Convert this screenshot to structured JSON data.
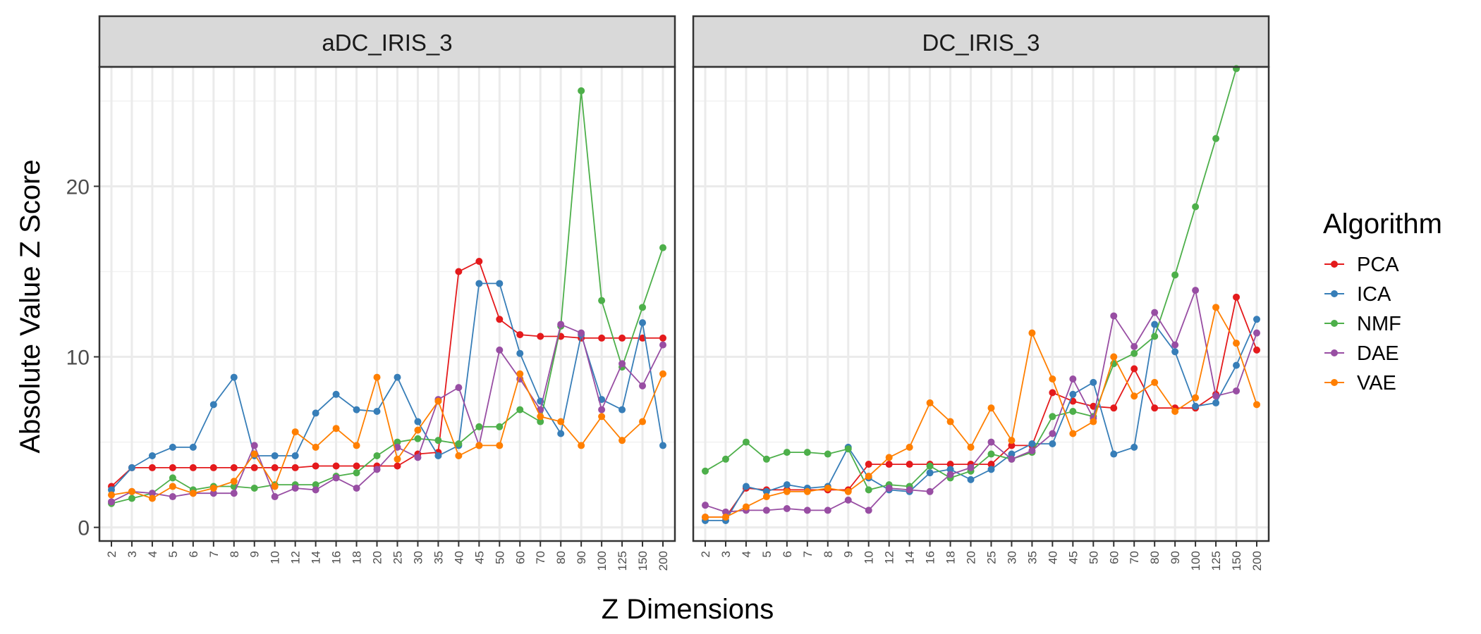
{
  "chart_data": {
    "type": "line",
    "xlabel": "Z Dimensions",
    "ylabel": "Absolute Value Z Score",
    "ylim": [
      -0.8,
      27
    ],
    "yticks": [
      0,
      10,
      20
    ],
    "grid": true,
    "legend": {
      "title": "Algorithm",
      "placement": "right"
    },
    "categories": [
      "2",
      "3",
      "4",
      "5",
      "6",
      "7",
      "8",
      "9",
      "10",
      "12",
      "14",
      "16",
      "18",
      "20",
      "25",
      "30",
      "35",
      "40",
      "45",
      "50",
      "60",
      "70",
      "80",
      "90",
      "100",
      "125",
      "150",
      "200"
    ],
    "colors": {
      "PCA": "#e41a1c",
      "ICA": "#377eb8",
      "NMF": "#4daf4a",
      "DAE": "#984ea3",
      "VAE": "#ff7f00"
    },
    "series_names": [
      "PCA",
      "ICA",
      "NMF",
      "DAE",
      "VAE"
    ],
    "panels": [
      {
        "title": "aDC_IRIS_3",
        "series": [
          {
            "name": "PCA",
            "values": [
              2.4,
              3.5,
              3.5,
              3.5,
              3.5,
              3.5,
              3.5,
              3.5,
              3.5,
              3.5,
              3.6,
              3.6,
              3.6,
              3.6,
              3.6,
              4.3,
              4.4,
              15.0,
              15.6,
              12.2,
              11.3,
              11.2,
              11.2,
              11.1,
              11.1,
              11.1,
              11.1,
              11.1
            ]
          },
          {
            "name": "ICA",
            "values": [
              2.2,
              3.5,
              4.2,
              4.7,
              4.7,
              7.2,
              8.8,
              4.2,
              4.2,
              4.2,
              6.7,
              7.8,
              6.9,
              6.8,
              8.8,
              6.2,
              4.2,
              4.8,
              14.3,
              14.3,
              10.2,
              7.4,
              5.5,
              11.3,
              7.5,
              6.9,
              12.0,
              4.8
            ]
          },
          {
            "name": "NMF",
            "values": [
              1.4,
              1.7,
              2.0,
              2.9,
              2.2,
              2.4,
              2.4,
              2.3,
              2.5,
              2.5,
              2.5,
              3.0,
              3.2,
              4.2,
              5.0,
              5.2,
              5.1,
              4.9,
              5.9,
              5.9,
              6.9,
              6.2,
              11.8,
              25.6,
              13.3,
              9.4,
              12.9,
              16.4
            ]
          },
          {
            "name": "DAE",
            "values": [
              1.5,
              2.1,
              2.0,
              1.8,
              2.0,
              2.0,
              2.0,
              4.8,
              1.8,
              2.3,
              2.2,
              2.9,
              2.3,
              3.4,
              4.7,
              4.1,
              7.5,
              8.2,
              4.8,
              10.4,
              8.7,
              6.9,
              11.9,
              11.4,
              6.9,
              9.6,
              8.3,
              10.7
            ]
          },
          {
            "name": "VAE",
            "values": [
              1.9,
              2.1,
              1.7,
              2.4,
              2.0,
              2.3,
              2.7,
              4.3,
              2.4,
              5.6,
              4.7,
              5.8,
              4.8,
              8.8,
              4.0,
              5.7,
              7.4,
              4.2,
              4.8,
              4.8,
              9.0,
              6.5,
              6.2,
              4.8,
              6.5,
              5.1,
              6.2,
              9.0
            ]
          }
        ]
      },
      {
        "title": "DC_IRIS_3",
        "series": [
          {
            "name": "PCA",
            "values": [
              0.6,
              0.6,
              2.3,
              2.2,
              2.2,
              2.2,
              2.2,
              2.2,
              3.7,
              3.7,
              3.7,
              3.7,
              3.7,
              3.7,
              3.7,
              4.8,
              4.8,
              7.9,
              7.4,
              7.1,
              7.0,
              9.3,
              7.0,
              7.0,
              7.0,
              7.8,
              13.5,
              10.4
            ]
          },
          {
            "name": "ICA",
            "values": [
              0.4,
              0.4,
              2.4,
              2.1,
              2.5,
              2.3,
              2.4,
              4.7,
              2.9,
              2.2,
              2.1,
              3.2,
              3.4,
              2.8,
              3.4,
              4.3,
              4.9,
              4.9,
              7.8,
              8.5,
              4.3,
              4.7,
              11.9,
              10.3,
              7.1,
              7.3,
              9.5,
              12.2
            ]
          },
          {
            "name": "NMF",
            "values": [
              3.3,
              4.0,
              5.0,
              4.0,
              4.4,
              4.4,
              4.3,
              4.6,
              2.2,
              2.5,
              2.4,
              3.6,
              2.9,
              3.3,
              4.3,
              4.0,
              4.4,
              6.5,
              6.8,
              6.5,
              9.6,
              10.2,
              11.2,
              14.8,
              18.8,
              22.8,
              26.9,
              null
            ]
          },
          {
            "name": "DAE",
            "values": [
              1.3,
              0.9,
              1.0,
              1.0,
              1.1,
              1.0,
              1.0,
              1.6,
              1.0,
              2.3,
              2.2,
              2.1,
              3.1,
              3.5,
              5.0,
              4.0,
              4.5,
              5.5,
              8.7,
              6.4,
              12.4,
              10.6,
              12.6,
              10.7,
              13.9,
              7.7,
              8.0,
              11.4
            ]
          },
          {
            "name": "VAE",
            "values": [
              0.6,
              0.6,
              1.2,
              1.8,
              2.1,
              2.1,
              2.3,
              2.1,
              3.0,
              4.1,
              4.7,
              7.3,
              6.2,
              4.7,
              7.0,
              5.1,
              11.4,
              8.7,
              5.5,
              6.2,
              10.0,
              7.7,
              8.5,
              6.8,
              7.6,
              12.9,
              10.8,
              7.2
            ]
          }
        ]
      }
    ]
  }
}
